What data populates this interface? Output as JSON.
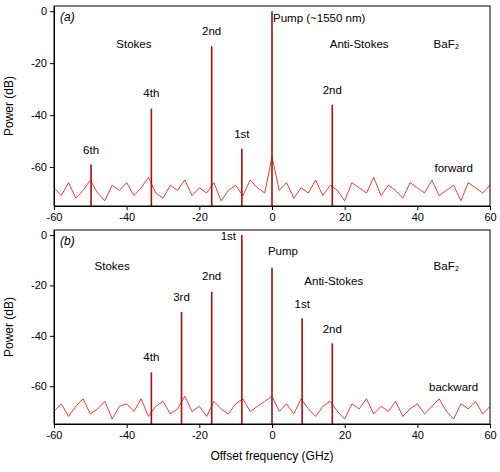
{
  "chart_data": [
    {
      "type": "line",
      "title": "(a)",
      "y_label": "Power (dB)",
      "xlim": [
        -60,
        60
      ],
      "xticks": [
        -60,
        -40,
        -20,
        0,
        20,
        40,
        60
      ],
      "ylim": [
        -75,
        2
      ],
      "yticks": [
        -60,
        -40,
        -20,
        0
      ],
      "series": [
        {
          "type": "line",
          "color": "#e8261e",
          "x": [
            -60,
            -58,
            -56,
            -54,
            -52,
            -50,
            -48,
            -46,
            -44,
            -42,
            -40,
            -38,
            -36,
            -34,
            -32,
            -30,
            -28,
            -26,
            -24,
            -22,
            -20,
            -18,
            -16,
            -14,
            -12,
            -10,
            -8,
            -6,
            -4,
            -2,
            0,
            2,
            4,
            6,
            8,
            10,
            12,
            14,
            16,
            18,
            20,
            22,
            24,
            26,
            28,
            30,
            32,
            34,
            36,
            38,
            40,
            42,
            44,
            46,
            48,
            50,
            52,
            54,
            56,
            58,
            60
          ],
          "values": [
            -68,
            -71,
            -66,
            -72,
            -69,
            -65,
            -70,
            -73,
            -67,
            -69,
            -66,
            -71,
            -68,
            -64,
            -70,
            -72,
            -67,
            -69,
            -65,
            -71,
            -68,
            -70,
            -66,
            -73,
            -69,
            -67,
            -71,
            -65,
            -68,
            -70,
            -56,
            -69,
            -66,
            -72,
            -68,
            -70,
            -65,
            -71,
            -67,
            -69,
            -73,
            -66,
            -68,
            -70,
            -64,
            -71,
            -67,
            -69,
            -72,
            -66,
            -68,
            -70,
            -65,
            -71,
            -69,
            -67,
            -73,
            -66,
            -68,
            -70,
            -67
          ]
        },
        {
          "type": "stem",
          "color": "#a3100d",
          "x": [
            -49.8,
            -33.2,
            -16.6,
            -8.3,
            0,
            16.6
          ],
          "values": [
            -59,
            -37.5,
            -13.5,
            -53,
            0,
            -36
          ]
        }
      ],
      "annotations": [
        {
          "text": "Pump (~1550 nm)",
          "x": 13,
          "y": -4
        },
        {
          "text": "Stokes",
          "x": -38,
          "y": -14
        },
        {
          "text": "Anti-Stokes",
          "x": 24,
          "y": -14
        },
        {
          "text": "BaF₂",
          "x": 48,
          "y": -14
        },
        {
          "text": "2nd",
          "x": -16.6,
          "y": -9
        },
        {
          "text": "4th",
          "x": -33.2,
          "y": -33
        },
        {
          "text": "6th",
          "x": -49.8,
          "y": -55
        },
        {
          "text": "1st",
          "x": -8.3,
          "y": -49
        },
        {
          "text": "2nd",
          "x": 16.6,
          "y": -32
        },
        {
          "text": "forward",
          "x": 50,
          "y": -62
        }
      ]
    },
    {
      "type": "line",
      "title": "(b)",
      "y_label": "Power (dB)",
      "x_label": "Offset frequency (GHz)",
      "xlim": [
        -60,
        60
      ],
      "xticks": [
        -60,
        -40,
        -20,
        0,
        20,
        40,
        60
      ],
      "ylim": [
        -75,
        2
      ],
      "yticks": [
        -60,
        -40,
        -20,
        0
      ],
      "series": [
        {
          "type": "line",
          "color": "#e8261e",
          "x": [
            -60,
            -58,
            -56,
            -54,
            -52,
            -50,
            -48,
            -46,
            -44,
            -42,
            -40,
            -38,
            -36,
            -34,
            -32,
            -30,
            -28,
            -26,
            -24,
            -22,
            -20,
            -18,
            -16,
            -14,
            -12,
            -10,
            -8,
            -6,
            -4,
            -2,
            0,
            2,
            4,
            6,
            8,
            10,
            12,
            14,
            16,
            18,
            20,
            22,
            24,
            26,
            28,
            30,
            32,
            34,
            36,
            38,
            40,
            42,
            44,
            46,
            48,
            50,
            52,
            54,
            56,
            58,
            60
          ],
          "values": [
            -70,
            -67,
            -72,
            -68,
            -65,
            -71,
            -69,
            -66,
            -73,
            -68,
            -67,
            -70,
            -65,
            -72,
            -68,
            -66,
            -71,
            -69,
            -64,
            -70,
            -68,
            -72,
            -66,
            -69,
            -71,
            -67,
            -65,
            -70,
            -68,
            -66,
            -64,
            -70,
            -67,
            -71,
            -65,
            -69,
            -72,
            -68,
            -66,
            -70,
            -73,
            -67,
            -69,
            -65,
            -71,
            -68,
            -70,
            -66,
            -72,
            -69,
            -67,
            -71,
            -68,
            -65,
            -70,
            -73,
            -67,
            -69,
            -66,
            -71,
            -68
          ]
        },
        {
          "type": "stem",
          "color": "#a3100d",
          "x": [
            -33.2,
            -24.9,
            -16.6,
            -8.3,
            0,
            8.3,
            16.6
          ],
          "values": [
            -54.5,
            -30.5,
            -22.5,
            0,
            -13,
            -33,
            -43
          ]
        }
      ],
      "annotations": [
        {
          "text": "Stokes",
          "x": -44,
          "y": -14
        },
        {
          "text": "Pump",
          "x": 3,
          "y": -8
        },
        {
          "text": "Anti-Stokes",
          "x": 17,
          "y": -20
        },
        {
          "text": "BaF₂",
          "x": 48,
          "y": -14
        },
        {
          "text": "1st",
          "x": -12,
          "y": -2
        },
        {
          "text": "2nd",
          "x": -16.6,
          "y": -18
        },
        {
          "text": "3rd",
          "x": -24.9,
          "y": -26
        },
        {
          "text": "4th",
          "x": -33.2,
          "y": -50
        },
        {
          "text": "1st",
          "x": 8.3,
          "y": -29
        },
        {
          "text": "2nd",
          "x": 16.6,
          "y": -39
        },
        {
          "text": "backward",
          "x": 50,
          "y": -62
        }
      ]
    }
  ]
}
